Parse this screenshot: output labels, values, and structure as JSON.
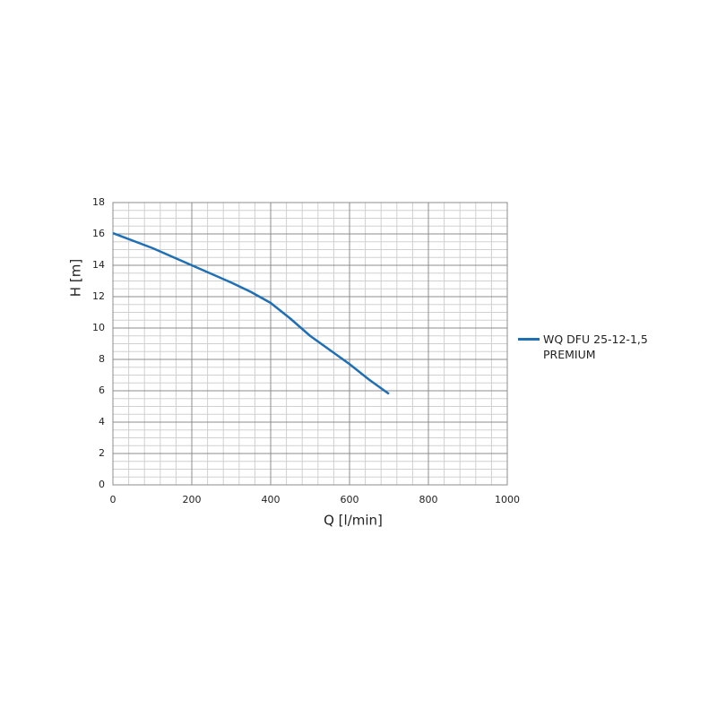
{
  "chart_data": {
    "type": "line",
    "x_label": "Q [l/min]",
    "y_label": "H [m]",
    "series": [
      {
        "name": "WQ DFU 25-12-1,5 PREMIUM",
        "color": "#1f6fb5",
        "x": [
          0,
          100,
          200,
          300,
          350,
          400,
          450,
          500,
          550,
          600,
          650,
          700
        ],
        "values": [
          16.05,
          15.1,
          14.0,
          12.9,
          12.3,
          11.6,
          10.6,
          9.5,
          8.6,
          7.7,
          6.7,
          5.8
        ]
      }
    ],
    "xlim": [
      0,
      1000
    ],
    "xticks": [
      0,
      200,
      400,
      600,
      800,
      1000
    ],
    "ylim": [
      0,
      18
    ],
    "yticks": [
      0,
      2,
      4,
      6,
      8,
      10,
      12,
      14,
      16,
      18
    ],
    "grid": true,
    "minor_grid": true,
    "legend": "right"
  }
}
